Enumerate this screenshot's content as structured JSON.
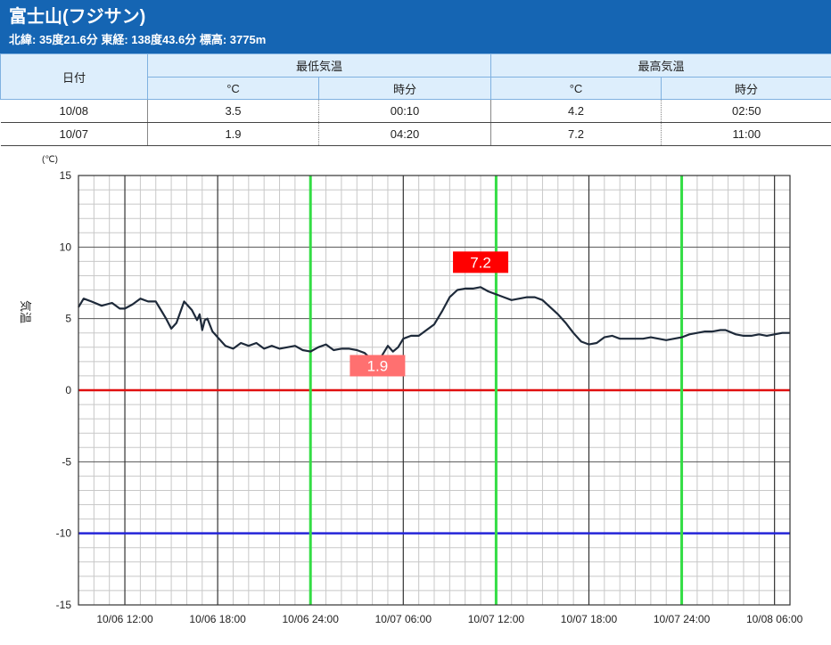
{
  "station": {
    "name": "富士山(フジサン)",
    "info": "北緯: 35度21.6分 東経: 138度43.6分 標高: 3775m"
  },
  "table": {
    "date_header": "日付",
    "min_header": "最低気温",
    "max_header": "最高気温",
    "unit_header": "°C",
    "time_header": "時分",
    "rows": [
      {
        "date": "10/08",
        "min_val": "3.5",
        "min_time": "00:10",
        "max_val": "4.2",
        "max_time": "02:50"
      },
      {
        "date": "10/07",
        "min_val": "1.9",
        "min_time": "04:20",
        "max_val": "7.2",
        "max_time": "11:00"
      }
    ]
  },
  "chart_data": {
    "type": "line",
    "ylabel": "気温",
    "yunit": "(℃)",
    "ylim": [
      -15,
      15
    ],
    "yticks": [
      15,
      10,
      5,
      0,
      -5,
      -10,
      -15
    ],
    "xlim": [
      "10/06 09:00",
      "10/08 07:00"
    ],
    "xticks": [
      "10/06 12:00",
      "10/06 18:00",
      "10/06 24:00",
      "10/07 06:00",
      "10/07 12:00",
      "10/07 18:00",
      "10/07 24:00",
      "10/08 06:00"
    ],
    "grid": true,
    "reference_lines": [
      {
        "y": 0,
        "color": "#e01010"
      },
      {
        "y": -10,
        "color": "#2424d8"
      }
    ],
    "highlight_lines": {
      "color": "#33dd44",
      "x": [
        "10/07 00:00",
        "10/07 12:00",
        "10/08 00:00"
      ]
    },
    "annotations": [
      {
        "label": "7.2",
        "x": "10/07 11:00",
        "y": 7.2,
        "bg": "#ff0000"
      },
      {
        "label": "1.9",
        "x": "10/07 04:20",
        "y": 1.9,
        "bg": "#ff7070"
      }
    ],
    "series": [
      {
        "color": "#1e2a3a",
        "x": [
          "10/06 09:00",
          "10/06 09:20",
          "10/06 09:50",
          "10/06 10:30",
          "10/06 11:10",
          "10/06 11:40",
          "10/06 12:00",
          "10/06 12:30",
          "10/06 13:00",
          "10/06 13:30",
          "10/06 14:00",
          "10/06 14:20",
          "10/06 14:40",
          "10/06 15:00",
          "10/06 15:20",
          "10/06 15:50",
          "10/06 16:00",
          "10/06 16:20",
          "10/06 16:40",
          "10/06 16:50",
          "10/06 17:00",
          "10/06 17:10",
          "10/06 17:20",
          "10/06 17:40",
          "10/06 17:50",
          "10/06 18:00",
          "10/06 18:30",
          "10/06 19:00",
          "10/06 19:30",
          "10/06 20:00",
          "10/06 20:30",
          "10/06 21:00",
          "10/06 21:30",
          "10/06 22:00",
          "10/06 22:30",
          "10/06 23:00",
          "10/06 23:30",
          "10/07 00:00",
          "10/07 00:30",
          "10/07 01:00",
          "10/07 01:30",
          "10/07 02:00",
          "10/07 02:30",
          "10/07 03:00",
          "10/07 03:30",
          "10/07 04:00",
          "10/07 04:20",
          "10/07 04:40",
          "10/07 05:00",
          "10/07 05:20",
          "10/07 05:40",
          "10/07 06:00",
          "10/07 06:30",
          "10/07 07:00",
          "10/07 07:30",
          "10/07 08:00",
          "10/07 08:30",
          "10/07 09:00",
          "10/07 09:30",
          "10/07 10:00",
          "10/07 10:30",
          "10/07 11:00",
          "10/07 11:30",
          "10/07 12:00",
          "10/07 12:30",
          "10/07 13:00",
          "10/07 13:30",
          "10/07 14:00",
          "10/07 14:30",
          "10/07 15:00",
          "10/07 15:30",
          "10/07 16:00",
          "10/07 16:30",
          "10/07 17:00",
          "10/07 17:30",
          "10/07 18:00",
          "10/07 18:30",
          "10/07 19:00",
          "10/07 19:30",
          "10/07 20:00",
          "10/07 20:30",
          "10/07 21:00",
          "10/07 21:30",
          "10/07 22:00",
          "10/07 22:30",
          "10/07 23:00",
          "10/07 23:30",
          "10/08 00:00",
          "10/08 00:30",
          "10/08 01:00",
          "10/08 01:30",
          "10/08 02:00",
          "10/08 02:30",
          "10/08 02:50",
          "10/08 03:30",
          "10/08 04:00",
          "10/08 04:30",
          "10/08 05:00",
          "10/08 05:30",
          "10/08 06:00",
          "10/08 06:30",
          "10/08 07:00"
        ],
        "y": [
          5.8,
          6.4,
          6.2,
          5.9,
          6.1,
          5.7,
          5.7,
          6.0,
          6.4,
          6.2,
          6.2,
          5.6,
          5.0,
          4.3,
          4.7,
          6.2,
          6.0,
          5.6,
          4.9,
          5.3,
          4.2,
          4.9,
          5.0,
          4.1,
          3.9,
          3.7,
          3.1,
          2.9,
          3.3,
          3.1,
          3.3,
          2.9,
          3.1,
          2.9,
          3.0,
          3.1,
          2.8,
          2.7,
          3.0,
          3.2,
          2.8,
          2.9,
          2.9,
          2.8,
          2.6,
          2.1,
          1.9,
          2.5,
          3.1,
          2.7,
          3.0,
          3.6,
          3.8,
          3.8,
          4.2,
          4.6,
          5.5,
          6.5,
          7.0,
          7.1,
          7.1,
          7.2,
          6.9,
          6.7,
          6.5,
          6.3,
          6.4,
          6.5,
          6.5,
          6.3,
          5.8,
          5.3,
          4.7,
          4.0,
          3.4,
          3.2,
          3.3,
          3.7,
          3.8,
          3.6,
          3.6,
          3.6,
          3.6,
          3.7,
          3.6,
          3.5,
          3.6,
          3.7,
          3.9,
          4.0,
          4.1,
          4.1,
          4.2,
          4.2,
          3.9,
          3.8,
          3.8,
          3.9,
          3.8,
          3.9,
          4.0,
          4.0
        ]
      }
    ]
  }
}
